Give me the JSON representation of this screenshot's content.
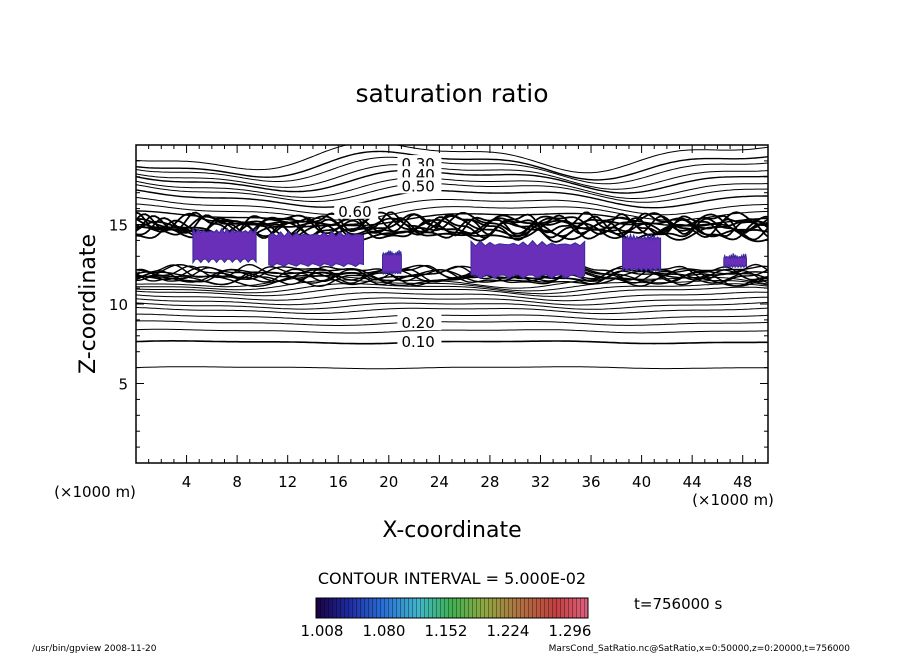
{
  "chart_data": {
    "type": "contour",
    "title": "saturation ratio",
    "xlabel": "X-coordinate",
    "ylabel": "Z-coordinate",
    "x_unit": "(×1000 m)",
    "z_unit": "(×1000 m)",
    "xlim": [
      0,
      50
    ],
    "zlim": [
      0,
      20
    ],
    "x_ticks": [
      "4",
      "8",
      "12",
      "16",
      "20",
      "24",
      "28",
      "32",
      "36",
      "40",
      "44",
      "48"
    ],
    "z_ticks": [
      "5",
      "10",
      "15"
    ],
    "contour_levels": [
      {
        "label": "0.10",
        "z": 7.6
      },
      {
        "label": "0.20",
        "z": 8.8
      },
      {
        "label": "0.30",
        "z": 18.8
      },
      {
        "label": "0.40",
        "z": 18.1
      },
      {
        "label": "0.50",
        "z": 17.4
      },
      {
        "label": "0.60",
        "z": 15.8
      }
    ],
    "contour_interval": "CONTOUR INTERVAL = 5.000E-02",
    "colorbar": {
      "labels": [
        "1.008",
        "1.080",
        "1.152",
        "1.224",
        "1.296"
      ]
    },
    "shaded_regions": [
      {
        "x": [
          4.5,
          9.5
        ],
        "z": [
          12.6,
          14.8
        ]
      },
      {
        "x": [
          10.5,
          18.0
        ],
        "z": [
          12.3,
          14.6
        ]
      },
      {
        "x": [
          19.5,
          21.0
        ],
        "z": [
          11.8,
          13.4
        ]
      },
      {
        "x": [
          26.5,
          35.5
        ],
        "z": [
          11.6,
          14.0
        ]
      },
      {
        "x": [
          38.5,
          41.5
        ],
        "z": [
          12.0,
          14.4
        ]
      },
      {
        "x": [
          46.5,
          48.3
        ],
        "z": [
          12.2,
          13.2
        ]
      }
    ]
  },
  "time_label": "t=756000 s",
  "footer_left": "/usr/bin/gpview   2008-11-20",
  "footer_right": "MarsCond_SatRatio.nc@SatRatio,x=0:50000,z=0:20000,t=756000",
  "colors": {
    "shade": "#6a2fb8",
    "shade_edge": "#3a2a9a",
    "line": "#000000"
  }
}
